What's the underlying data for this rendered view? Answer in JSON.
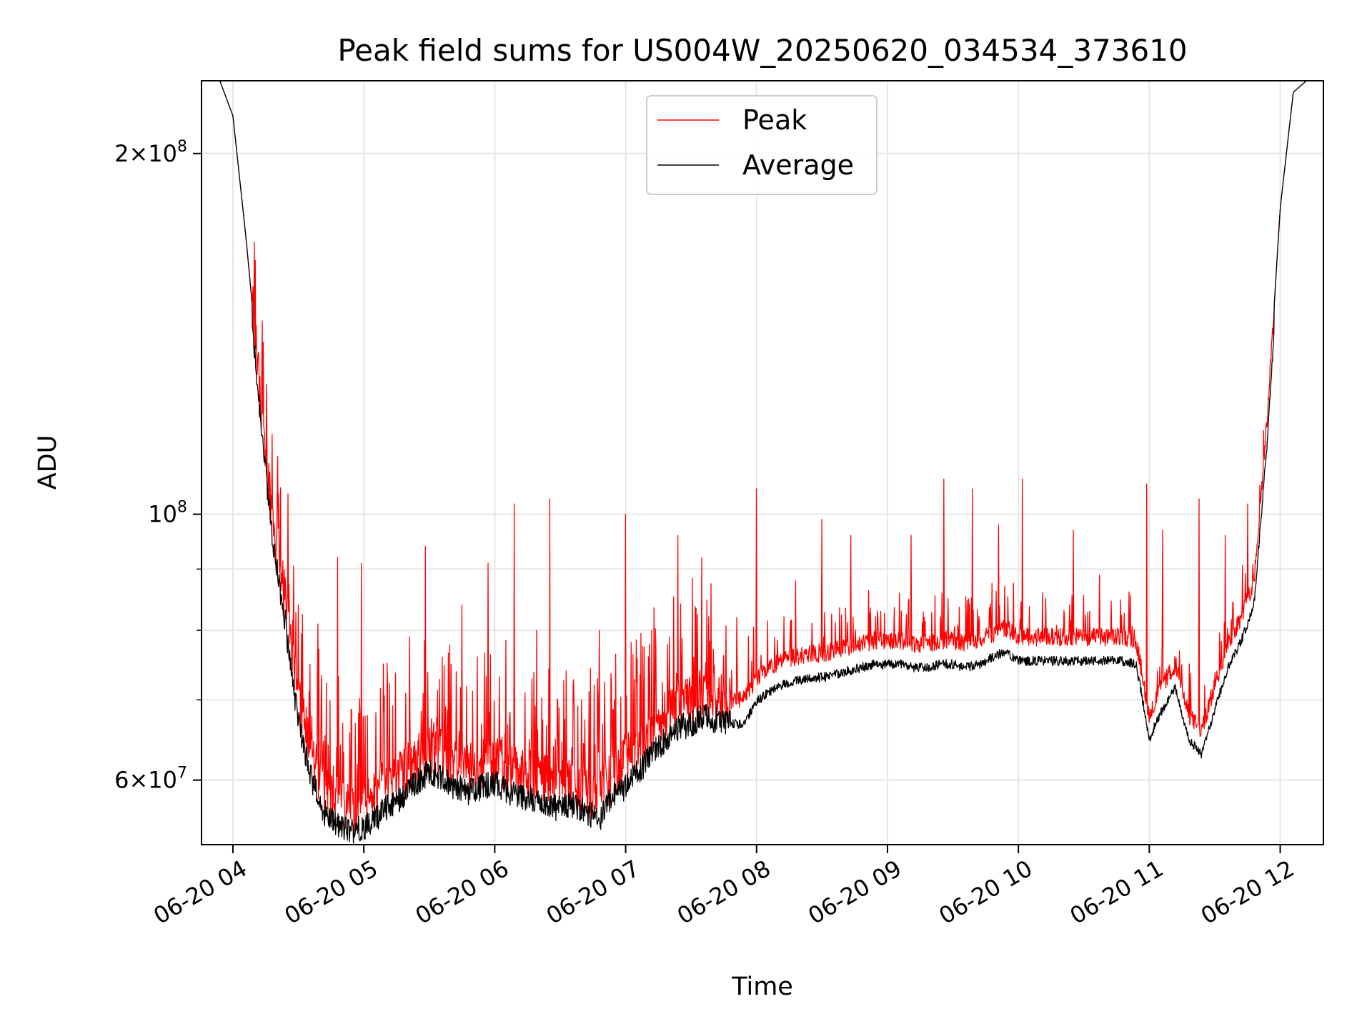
{
  "chart_data": {
    "type": "line",
    "title": "Peak field sums for US004W_20250620_034534_373610",
    "xlabel": "Time",
    "ylabel": "ADU",
    "yscale": "log",
    "ylim": [
      53000000,
      230000000
    ],
    "xlim_hours": [
      3.76,
      12.33
    ],
    "grid": true,
    "legend_position": "top-center",
    "x_ticks": [
      {
        "hour": 4,
        "label": "06-20 04"
      },
      {
        "hour": 5,
        "label": "06-20 05"
      },
      {
        "hour": 6,
        "label": "06-20 06"
      },
      {
        "hour": 7,
        "label": "06-20 07"
      },
      {
        "hour": 8,
        "label": "06-20 08"
      },
      {
        "hour": 9,
        "label": "06-20 09"
      },
      {
        "hour": 10,
        "label": "06-20 10"
      },
      {
        "hour": 11,
        "label": "06-20 11"
      },
      {
        "hour": 12,
        "label": "06-20 12"
      }
    ],
    "y_major_ticks": [
      {
        "value": 60000000,
        "mantissa": "6",
        "exponent": "7"
      },
      {
        "value": 100000000,
        "mantissa": "",
        "exponent": "8"
      },
      {
        "value": 200000000,
        "mantissa": "2",
        "exponent": "8"
      }
    ],
    "y_minor_ticks": [
      70000000,
      80000000,
      90000000
    ],
    "series": [
      {
        "name": "Peak",
        "color": "#ff0000",
        "baseline_points": [
          [
            3.76,
            230000000
          ],
          [
            3.9,
            230000000
          ],
          [
            4.0,
            215000000
          ],
          [
            4.1,
            170000000
          ],
          [
            4.2,
            130000000
          ],
          [
            4.3,
            100000000
          ],
          [
            4.4,
            85000000
          ],
          [
            4.5,
            70000000
          ],
          [
            4.6,
            63000000
          ],
          [
            4.7,
            59000000
          ],
          [
            4.8,
            57500000
          ],
          [
            4.9,
            57000000
          ],
          [
            5.0,
            57500000
          ],
          [
            5.1,
            58500000
          ],
          [
            5.2,
            60000000
          ],
          [
            5.3,
            61000000
          ],
          [
            5.4,
            62500000
          ],
          [
            5.5,
            64000000
          ],
          [
            5.6,
            63000000
          ],
          [
            5.7,
            62000000
          ],
          [
            5.8,
            61500000
          ],
          [
            5.9,
            62000000
          ],
          [
            6.0,
            62500000
          ],
          [
            6.1,
            61500000
          ],
          [
            6.2,
            61000000
          ],
          [
            6.3,
            60500000
          ],
          [
            6.4,
            60000000
          ],
          [
            6.5,
            59500000
          ],
          [
            6.6,
            60000000
          ],
          [
            6.7,
            59000000
          ],
          [
            6.8,
            58000000
          ],
          [
            6.9,
            61000000
          ],
          [
            7.0,
            62000000
          ],
          [
            7.1,
            64000000
          ],
          [
            7.2,
            66000000
          ],
          [
            7.3,
            68000000
          ],
          [
            7.4,
            69500000
          ],
          [
            7.5,
            70000000
          ],
          [
            7.6,
            71000000
          ],
          [
            7.7,
            70500000
          ],
          [
            7.8,
            70000000
          ],
          [
            7.9,
            70000000
          ],
          [
            8.0,
            73000000
          ],
          [
            8.1,
            74500000
          ],
          [
            8.2,
            75500000
          ],
          [
            8.3,
            76000000
          ],
          [
            8.4,
            76500000
          ],
          [
            8.5,
            76500000
          ],
          [
            8.6,
            77000000
          ],
          [
            8.7,
            77500000
          ],
          [
            8.8,
            78000000
          ],
          [
            8.9,
            78500000
          ],
          [
            9.0,
            78500000
          ],
          [
            9.1,
            78500000
          ],
          [
            9.2,
            78000000
          ],
          [
            9.3,
            78000000
          ],
          [
            9.4,
            78500000
          ],
          [
            9.5,
            78500000
          ],
          [
            9.6,
            78000000
          ],
          [
            9.7,
            78500000
          ],
          [
            9.8,
            79500000
          ],
          [
            9.9,
            80500000
          ],
          [
            10.0,
            79000000
          ],
          [
            10.1,
            79000000
          ],
          [
            10.2,
            79000000
          ],
          [
            10.3,
            79000000
          ],
          [
            10.4,
            79000000
          ],
          [
            10.5,
            79000000
          ],
          [
            10.6,
            79000000
          ],
          [
            10.7,
            79000000
          ],
          [
            10.8,
            79000000
          ],
          [
            10.9,
            78500000
          ],
          [
            11.0,
            68000000
          ],
          [
            11.1,
            72000000
          ],
          [
            11.2,
            75000000
          ],
          [
            11.3,
            68000000
          ],
          [
            11.4,
            66000000
          ],
          [
            11.5,
            72000000
          ],
          [
            11.6,
            78000000
          ],
          [
            11.7,
            82000000
          ],
          [
            11.8,
            88000000
          ],
          [
            11.9,
            120000000
          ],
          [
            12.0,
            180000000
          ],
          [
            12.1,
            225000000
          ],
          [
            12.2,
            230000000
          ],
          [
            12.33,
            230000000
          ]
        ],
        "spikes": [
          [
            4.35,
            104000000
          ],
          [
            4.42,
            104000000
          ],
          [
            4.5,
            84000000
          ],
          [
            4.65,
            81000000
          ],
          [
            4.8,
            92000000
          ],
          [
            4.98,
            91000000
          ],
          [
            5.15,
            75000000
          ],
          [
            5.35,
            79000000
          ],
          [
            5.47,
            94000000
          ],
          [
            5.6,
            76000000
          ],
          [
            5.75,
            84000000
          ],
          [
            5.95,
            91000000
          ],
          [
            6.15,
            102000000
          ],
          [
            6.32,
            80000000
          ],
          [
            6.42,
            103000000
          ],
          [
            6.6,
            72000000
          ],
          [
            6.8,
            80000000
          ],
          [
            7.0,
            100000000
          ],
          [
            7.2,
            80000000
          ],
          [
            7.4,
            96000000
          ],
          [
            7.58,
            92000000
          ],
          [
            7.85,
            82000000
          ],
          [
            8.0,
            105000000
          ],
          [
            8.3,
            88000000
          ],
          [
            8.5,
            99000000
          ],
          [
            8.72,
            96000000
          ],
          [
            8.95,
            83000000
          ],
          [
            9.18,
            96000000
          ],
          [
            9.43,
            107000000
          ],
          [
            9.65,
            105000000
          ],
          [
            9.85,
            98000000
          ],
          [
            10.03,
            107000000
          ],
          [
            10.42,
            97000000
          ],
          [
            10.62,
            89000000
          ],
          [
            10.98,
            106000000
          ],
          [
            11.1,
            97000000
          ],
          [
            11.38,
            103000000
          ],
          [
            11.58,
            96000000
          ],
          [
            11.75,
            102000000
          ]
        ]
      },
      {
        "name": "Average",
        "color": "#000000",
        "offset_ratio": 0.955
      }
    ]
  }
}
